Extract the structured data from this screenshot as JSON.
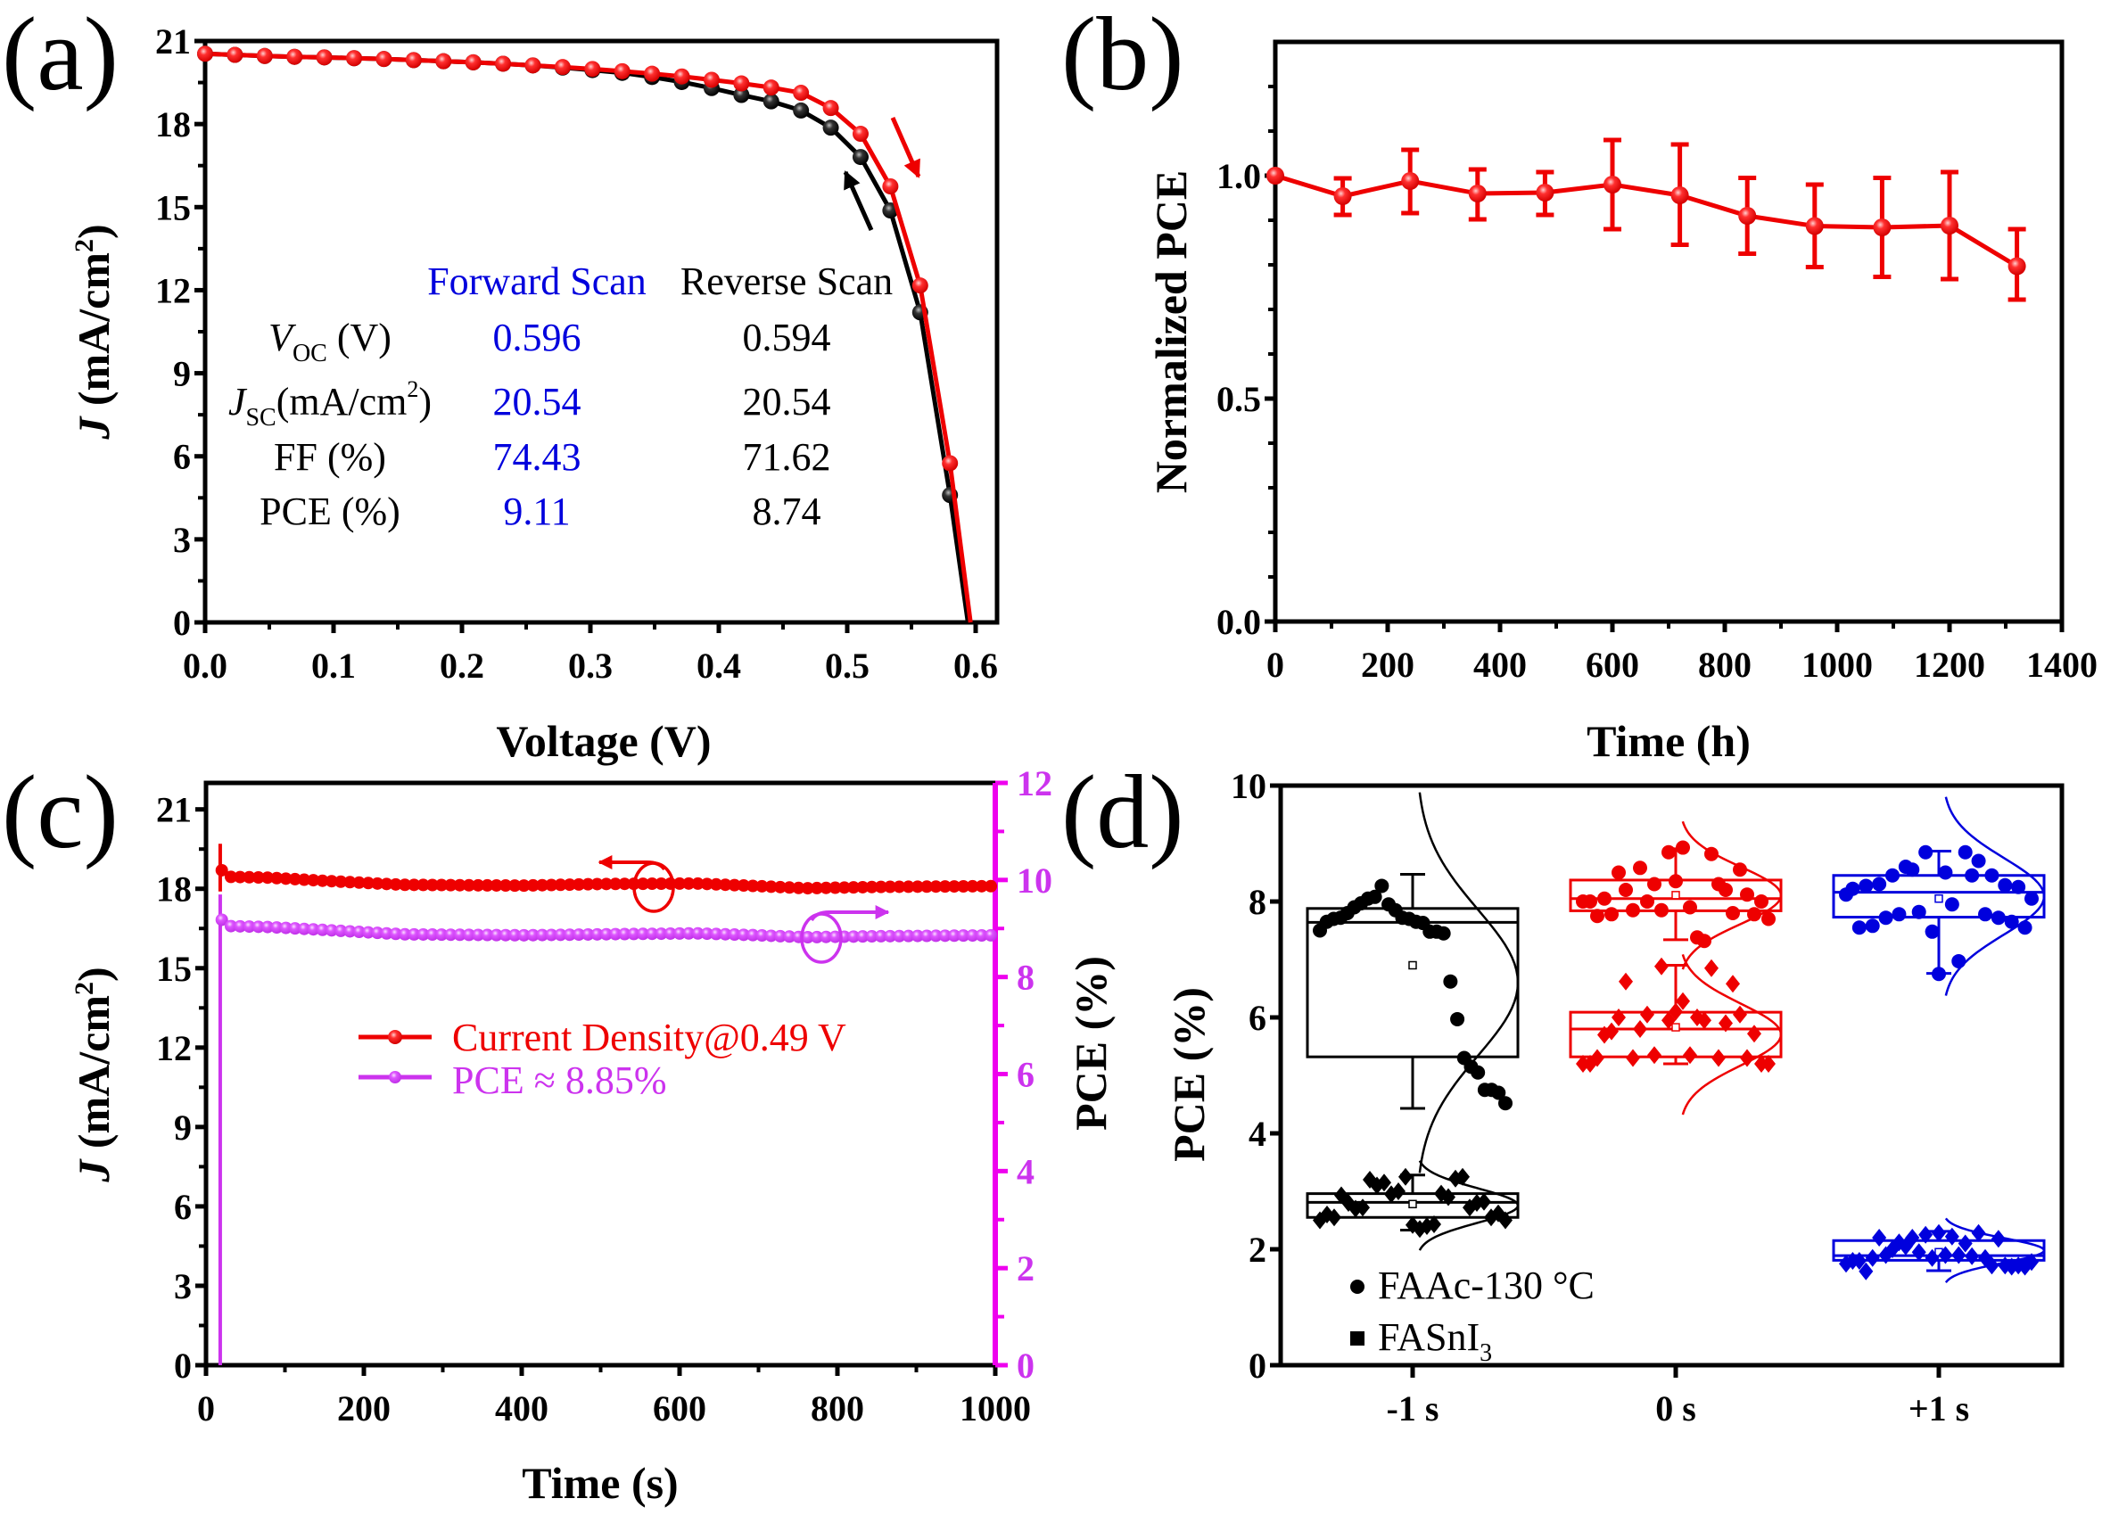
{
  "panel_labels": [
    "(a)",
    "(b)",
    "(c)",
    "(d)"
  ],
  "colors": {
    "red": "#ee0000",
    "black": "#000000",
    "blue": "#0000dd",
    "violet": "#cc33ee",
    "magenta": "#ee00ee"
  },
  "chart_data": [
    {
      "id": "a",
      "type": "line",
      "xlabel": "Voltage (V)",
      "ylabel": "J (mA/cm2)",
      "ylabel_parts": {
        "italic": "J",
        "rest": " (mA/cm",
        "sup": "2",
        "close": ")"
      },
      "xlim": [
        0,
        0.62
      ],
      "ylim": [
        0,
        21
      ],
      "xticks": [
        "0.0",
        "0.1",
        "0.2",
        "0.3",
        "0.4",
        "0.5",
        "0.6"
      ],
      "yticks": [
        "0",
        "3",
        "6",
        "9",
        "12",
        "15",
        "18",
        "21"
      ],
      "series": [
        {
          "name": "Forward Scan",
          "color": "red",
          "x": [
            0,
            0.0232,
            0.0464,
            0.0696,
            0.0928,
            0.116,
            0.1392,
            0.1624,
            0.1856,
            0.2088,
            0.232,
            0.2552,
            0.2784,
            0.3016,
            0.3248,
            0.348,
            0.3712,
            0.3944,
            0.4176,
            0.4408,
            0.464,
            0.4872,
            0.5104,
            0.5336,
            0.5568,
            0.58,
            0.596
          ],
          "y": [
            20.54,
            20.5,
            20.46,
            20.43,
            20.41,
            20.38,
            20.35,
            20.31,
            20.27,
            20.23,
            20.18,
            20.12,
            20.06,
            19.99,
            19.91,
            19.82,
            19.72,
            19.6,
            19.47,
            19.32,
            19.13,
            18.58,
            17.65,
            15.75,
            12.17,
            5.75,
            0
          ]
        },
        {
          "name": "Reverse Scan",
          "color": "black",
          "x": [
            0,
            0.0232,
            0.0464,
            0.0696,
            0.0928,
            0.116,
            0.1392,
            0.1624,
            0.1856,
            0.2088,
            0.232,
            0.2552,
            0.2784,
            0.3016,
            0.3248,
            0.348,
            0.3712,
            0.3944,
            0.4176,
            0.4408,
            0.464,
            0.4872,
            0.5104,
            0.5336,
            0.5568,
            0.58,
            0.594
          ],
          "y": [
            20.54,
            20.5,
            20.46,
            20.43,
            20.41,
            20.38,
            20.35,
            20.31,
            20.27,
            20.23,
            20.18,
            20.12,
            20.04,
            19.95,
            19.85,
            19.7,
            19.52,
            19.3,
            19.05,
            18.82,
            18.49,
            17.87,
            16.81,
            14.88,
            11.2,
            4.6,
            0
          ]
        }
      ],
      "annotations": {
        "arrows": [
          {
            "color": "red",
            "direction": "down",
            "near": "forward curve knee"
          },
          {
            "color": "black",
            "direction": "up",
            "near": "reverse curve knee"
          }
        ]
      },
      "table": {
        "headers": [
          "",
          "Forward Scan",
          "Reverse Scan"
        ],
        "rows": [
          {
            "label_main": "V",
            "label_sub": "OC",
            "label_rest": " (V)",
            "forward": "0.596",
            "reverse": "0.594"
          },
          {
            "label_main": "J",
            "label_sub": "SC",
            "label_rest": "(mA/cm",
            "label_sup": "2",
            "label_close": ")",
            "forward": "20.54",
            "reverse": "20.54"
          },
          {
            "label_main": "FF (%)",
            "forward": "74.43",
            "reverse": "71.62"
          },
          {
            "label_main": "PCE (%)",
            "forward": "9.11",
            "reverse": "8.74"
          }
        ]
      }
    },
    {
      "id": "b",
      "type": "line",
      "xlabel": "Time (h)",
      "ylabel": "Normalized PCE",
      "xlim": [
        0,
        1400
      ],
      "ylim": [
        0,
        1.3
      ],
      "xticks": [
        "0",
        "200",
        "400",
        "600",
        "800",
        "1000",
        "1200",
        "1400"
      ],
      "yticks": [
        "0.0",
        "0.5",
        "1.0"
      ],
      "series": [
        {
          "name": "Normalized PCE",
          "color": "red",
          "x": [
            0,
            120,
            240,
            360,
            480,
            600,
            720,
            840,
            960,
            1080,
            1200,
            1320
          ],
          "y": [
            1.0,
            0.954,
            0.988,
            0.96,
            0.962,
            0.98,
            0.956,
            0.91,
            0.887,
            0.884,
            0.888,
            0.797
          ],
          "err_low": [
            1.0,
            0.912,
            0.916,
            0.902,
            0.912,
            0.88,
            0.845,
            0.825,
            0.795,
            0.773,
            0.768,
            0.722
          ],
          "err_high": [
            1.0,
            0.994,
            1.058,
            1.014,
            1.008,
            1.08,
            1.07,
            0.995,
            0.98,
            0.995,
            1.008,
            0.88
          ]
        }
      ]
    },
    {
      "id": "c",
      "type": "line",
      "xlabel": "Time (s)",
      "ylabel": "J (mA/cm2)",
      "ylabel_right": "PCE (%)",
      "xlim": [
        0,
        1000
      ],
      "ylim": [
        0,
        22
      ],
      "ylim_right": [
        0,
        12
      ],
      "xticks": [
        "0",
        "200",
        "400",
        "600",
        "800",
        "1000"
      ],
      "yticks": [
        "0",
        "3",
        "6",
        "9",
        "12",
        "15",
        "18",
        "21"
      ],
      "yticks_right": [
        "0",
        "2",
        "4",
        "6",
        "8",
        "10",
        "12"
      ],
      "series": [
        {
          "name": "Current Density@0.49 V",
          "color": "red",
          "axis": "left",
          "x": [
            20,
            30,
            80,
            150,
            250,
            400,
            500,
            620,
            700,
            760,
            850,
            1000
          ],
          "y": [
            18.7,
            18.45,
            18.42,
            18.3,
            18.15,
            18.12,
            18.18,
            18.2,
            18.1,
            18.02,
            18.07,
            18.1
          ]
        },
        {
          "name": "PCE ≈ 8.85%",
          "color": "violet",
          "axis": "right",
          "x": [
            20,
            30,
            80,
            150,
            250,
            400,
            500,
            620,
            700,
            760,
            850,
            1000
          ],
          "y": [
            9.18,
            9.05,
            9.03,
            8.97,
            8.88,
            8.86,
            8.88,
            8.9,
            8.86,
            8.82,
            8.84,
            8.86
          ]
        }
      ],
      "legend": {
        "items": [
          "Current Density@0.49 V",
          "PCE ≈ 8.85%"
        ],
        "placement": "center-left"
      }
    },
    {
      "id": "d",
      "type": "box",
      "ylabel": "PCE (%)",
      "categories": [
        "-1 s",
        "0 s",
        "+1 s"
      ],
      "ylim": [
        0,
        10
      ],
      "yticks": [
        "0",
        "2",
        "4",
        "6",
        "8",
        "10"
      ],
      "legend": {
        "items": [
          {
            "marker": "circle",
            "text": "FAAc-130 °C"
          },
          {
            "marker": "square",
            "text": "FASnI",
            "sub": "3"
          }
        ],
        "placement": "bottom-left"
      },
      "groups": [
        {
          "category": "-1 s",
          "sample": "FAAc-130 °C",
          "color": "black",
          "marker": "circle",
          "q1": 5.32,
          "median": 7.64,
          "q3": 7.88,
          "mean": 6.9,
          "whisker_low": 4.43,
          "whisker_high": 8.47,
          "points": [
            7.5,
            7.65,
            7.7,
            7.72,
            7.8,
            7.9,
            7.97,
            8.05,
            8.08,
            8.27,
            7.95,
            7.85,
            7.72,
            7.7,
            7.65,
            7.63,
            7.48,
            7.48,
            7.45,
            6.62,
            5.97,
            5.3,
            5.15,
            5.05,
            4.75,
            4.75,
            4.7,
            4.52
          ]
        },
        {
          "category": "-1 s",
          "sample": "FASnI3",
          "color": "black",
          "marker": "diamond",
          "q1": 2.55,
          "median": 2.81,
          "q3": 2.96,
          "mean": 2.78,
          "whisker_low": 2.33,
          "whisker_high": 3.28,
          "points": [
            2.5,
            2.6,
            2.55,
            2.93,
            2.8,
            2.7,
            2.72,
            3.2,
            3.1,
            3.15,
            2.95,
            3.0,
            3.25,
            2.42,
            2.35,
            2.4,
            2.43,
            2.96,
            2.9,
            3.22,
            3.25,
            2.72,
            2.8,
            2.82,
            2.55,
            2.62,
            2.5
          ]
        },
        {
          "category": "0 s",
          "sample": "FAAc-130 °C",
          "color": "red",
          "marker": "circle",
          "q1": 7.84,
          "median": 8.05,
          "q3": 8.37,
          "mean": 8.11,
          "whisker_low": 7.34,
          "whisker_high": 8.91,
          "points": [
            8.0,
            8.0,
            7.75,
            8.05,
            7.78,
            8.5,
            8.2,
            7.85,
            8.58,
            8.0,
            8.3,
            7.85,
            8.85,
            8.35,
            8.93,
            7.9,
            7.38,
            7.32,
            8.82,
            8.3,
            8.2,
            7.8,
            8.55,
            8.12,
            7.78,
            8.0,
            7.7
          ]
        },
        {
          "category": "0 s",
          "sample": "FASnI3",
          "color": "red",
          "marker": "diamond",
          "q1": 5.32,
          "median": 5.8,
          "q3": 6.09,
          "mean": 5.83,
          "whisker_low": 5.2,
          "whisker_high": 6.9,
          "points": [
            5.2,
            5.2,
            5.3,
            5.7,
            5.76,
            6.0,
            6.62,
            5.3,
            5.8,
            6.05,
            5.35,
            6.88,
            5.95,
            6.1,
            6.28,
            5.35,
            6.0,
            5.95,
            6.85,
            5.3,
            5.9,
            6.58,
            6.05,
            5.3,
            5.72,
            5.2,
            5.2
          ]
        },
        {
          "category": "+1 s",
          "sample": "FAAc-130 °C",
          "color": "blue",
          "marker": "circle",
          "q1": 7.73,
          "median": 8.16,
          "q3": 8.45,
          "mean": 8.05,
          "whisker_low": 6.76,
          "whisker_high": 8.87,
          "points": [
            8.12,
            8.22,
            7.55,
            8.27,
            7.58,
            8.3,
            7.72,
            8.45,
            7.78,
            8.6,
            8.55,
            7.82,
            8.85,
            7.48,
            6.75,
            8.5,
            7.95,
            6.97,
            8.85,
            8.45,
            8.7,
            7.78,
            8.45,
            7.72,
            8.28,
            7.65,
            8.25,
            7.55,
            8.05
          ]
        },
        {
          "category": "+1 s",
          "sample": "FASnI3",
          "color": "blue",
          "marker": "diamond",
          "q1": 1.81,
          "median": 1.89,
          "q3": 2.15,
          "mean": 1.95,
          "whisker_low": 1.63,
          "whisker_high": 2.31,
          "points": [
            1.75,
            1.8,
            1.8,
            1.62,
            1.85,
            2.2,
            1.9,
            2.0,
            2.12,
            2.05,
            2.2,
            1.95,
            2.25,
            1.85,
            2.28,
            1.9,
            2.22,
            1.9,
            2.1,
            1.88,
            2.28,
            1.85,
            1.72,
            2.18,
            1.72,
            1.7,
            1.72,
            1.7,
            1.78
          ]
        }
      ]
    }
  ]
}
